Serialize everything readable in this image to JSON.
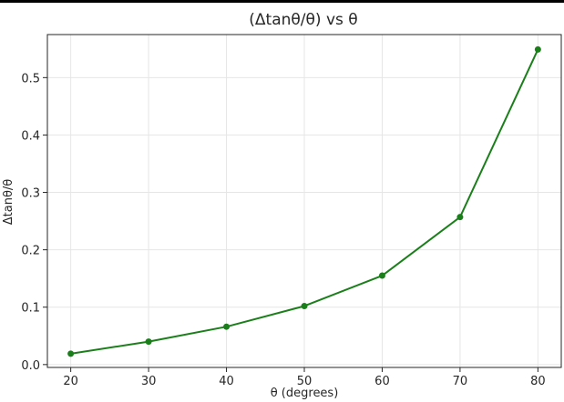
{
  "chart_data": {
    "type": "line",
    "title": "(Δtanθ/θ) vs θ",
    "xlabel": "θ (degrees)",
    "ylabel": "Δtanθ/θ",
    "x": [
      20,
      30,
      40,
      50,
      60,
      70,
      80
    ],
    "series": [
      {
        "values": [
          0.019,
          0.04,
          0.066,
          0.102,
          0.155,
          0.257,
          0.549
        ],
        "color": "#1a7f1a",
        "marker": "circle"
      }
    ],
    "xlim": [
      17,
      83
    ],
    "ylim": [
      -0.005,
      0.575
    ],
    "xticks": [
      20,
      30,
      40,
      50,
      60,
      70,
      80
    ],
    "xtick_labels": [
      "20",
      "30",
      "40",
      "50",
      "60",
      "70",
      "80"
    ],
    "yticks": [
      0.0,
      0.1,
      0.2,
      0.3,
      0.4,
      0.5
    ],
    "ytick_labels": [
      "0.0",
      "0.1",
      "0.2",
      "0.3",
      "0.4",
      "0.5"
    ],
    "grid": true,
    "grid_color": "#e6e6e6",
    "axis_color": "#262626"
  }
}
